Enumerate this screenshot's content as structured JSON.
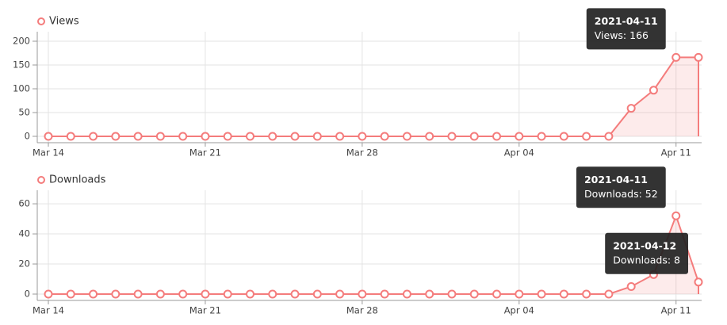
{
  "chart_data": [
    {
      "type": "line",
      "x": [
        "2021-03-14",
        "2021-03-15",
        "2021-03-16",
        "2021-03-17",
        "2021-03-18",
        "2021-03-19",
        "2021-03-20",
        "2021-03-21",
        "2021-03-22",
        "2021-03-23",
        "2021-03-24",
        "2021-03-25",
        "2021-03-26",
        "2021-03-27",
        "2021-03-28",
        "2021-03-29",
        "2021-03-30",
        "2021-03-31",
        "2021-04-01",
        "2021-04-02",
        "2021-04-03",
        "2021-04-04",
        "2021-04-05",
        "2021-04-06",
        "2021-04-07",
        "2021-04-08",
        "2021-04-09",
        "2021-04-10",
        "2021-04-11",
        "2021-04-12"
      ],
      "series": [
        {
          "name": "Views",
          "color": "#f47c7c",
          "values": [
            0,
            0,
            0,
            0,
            0,
            0,
            0,
            0,
            0,
            0,
            0,
            0,
            0,
            0,
            0,
            0,
            0,
            0,
            0,
            0,
            0,
            0,
            0,
            0,
            0,
            0,
            59,
            97,
            166,
            166
          ]
        }
      ],
      "ylim": [
        0,
        220
      ],
      "yticks": [
        0,
        50,
        100,
        150,
        200
      ],
      "xticks": [
        {
          "value": "2021-03-14",
          "label": "Mar 14"
        },
        {
          "value": "2021-03-21",
          "label": "Mar 21"
        },
        {
          "value": "2021-03-28",
          "label": "Mar 28"
        },
        {
          "value": "2021-04-04",
          "label": "Apr 04"
        },
        {
          "value": "2021-04-11",
          "label": "Apr 11"
        }
      ],
      "grid": true,
      "tooltips": [
        {
          "title": "2021-04-11",
          "text": "Views: 166"
        }
      ]
    },
    {
      "type": "line",
      "x": [
        "2021-03-14",
        "2021-03-15",
        "2021-03-16",
        "2021-03-17",
        "2021-03-18",
        "2021-03-19",
        "2021-03-20",
        "2021-03-21",
        "2021-03-22",
        "2021-03-23",
        "2021-03-24",
        "2021-03-25",
        "2021-03-26",
        "2021-03-27",
        "2021-03-28",
        "2021-03-29",
        "2021-03-30",
        "2021-03-31",
        "2021-04-01",
        "2021-04-02",
        "2021-04-03",
        "2021-04-04",
        "2021-04-05",
        "2021-04-06",
        "2021-04-07",
        "2021-04-08",
        "2021-04-09",
        "2021-04-10",
        "2021-04-11",
        "2021-04-12"
      ],
      "series": [
        {
          "name": "Downloads",
          "color": "#f47c7c",
          "values": [
            0,
            0,
            0,
            0,
            0,
            0,
            0,
            0,
            0,
            0,
            0,
            0,
            0,
            0,
            0,
            0,
            0,
            0,
            0,
            0,
            0,
            0,
            0,
            0,
            0,
            0,
            5,
            13,
            52,
            8
          ]
        }
      ],
      "ylim": [
        0,
        69
      ],
      "yticks": [
        0,
        20,
        40,
        60
      ],
      "xticks": [
        {
          "value": "2021-03-14",
          "label": "Mar 14"
        },
        {
          "value": "2021-03-21",
          "label": "Mar 21"
        },
        {
          "value": "2021-03-28",
          "label": "Mar 28"
        },
        {
          "value": "2021-04-04",
          "label": "Apr 04"
        },
        {
          "value": "2021-04-11",
          "label": "Apr 11"
        }
      ],
      "grid": true,
      "tooltips": [
        {
          "title": "2021-04-11",
          "text": "Downloads: 52"
        },
        {
          "title": "2021-04-12",
          "text": "Downloads: 8"
        }
      ]
    }
  ]
}
